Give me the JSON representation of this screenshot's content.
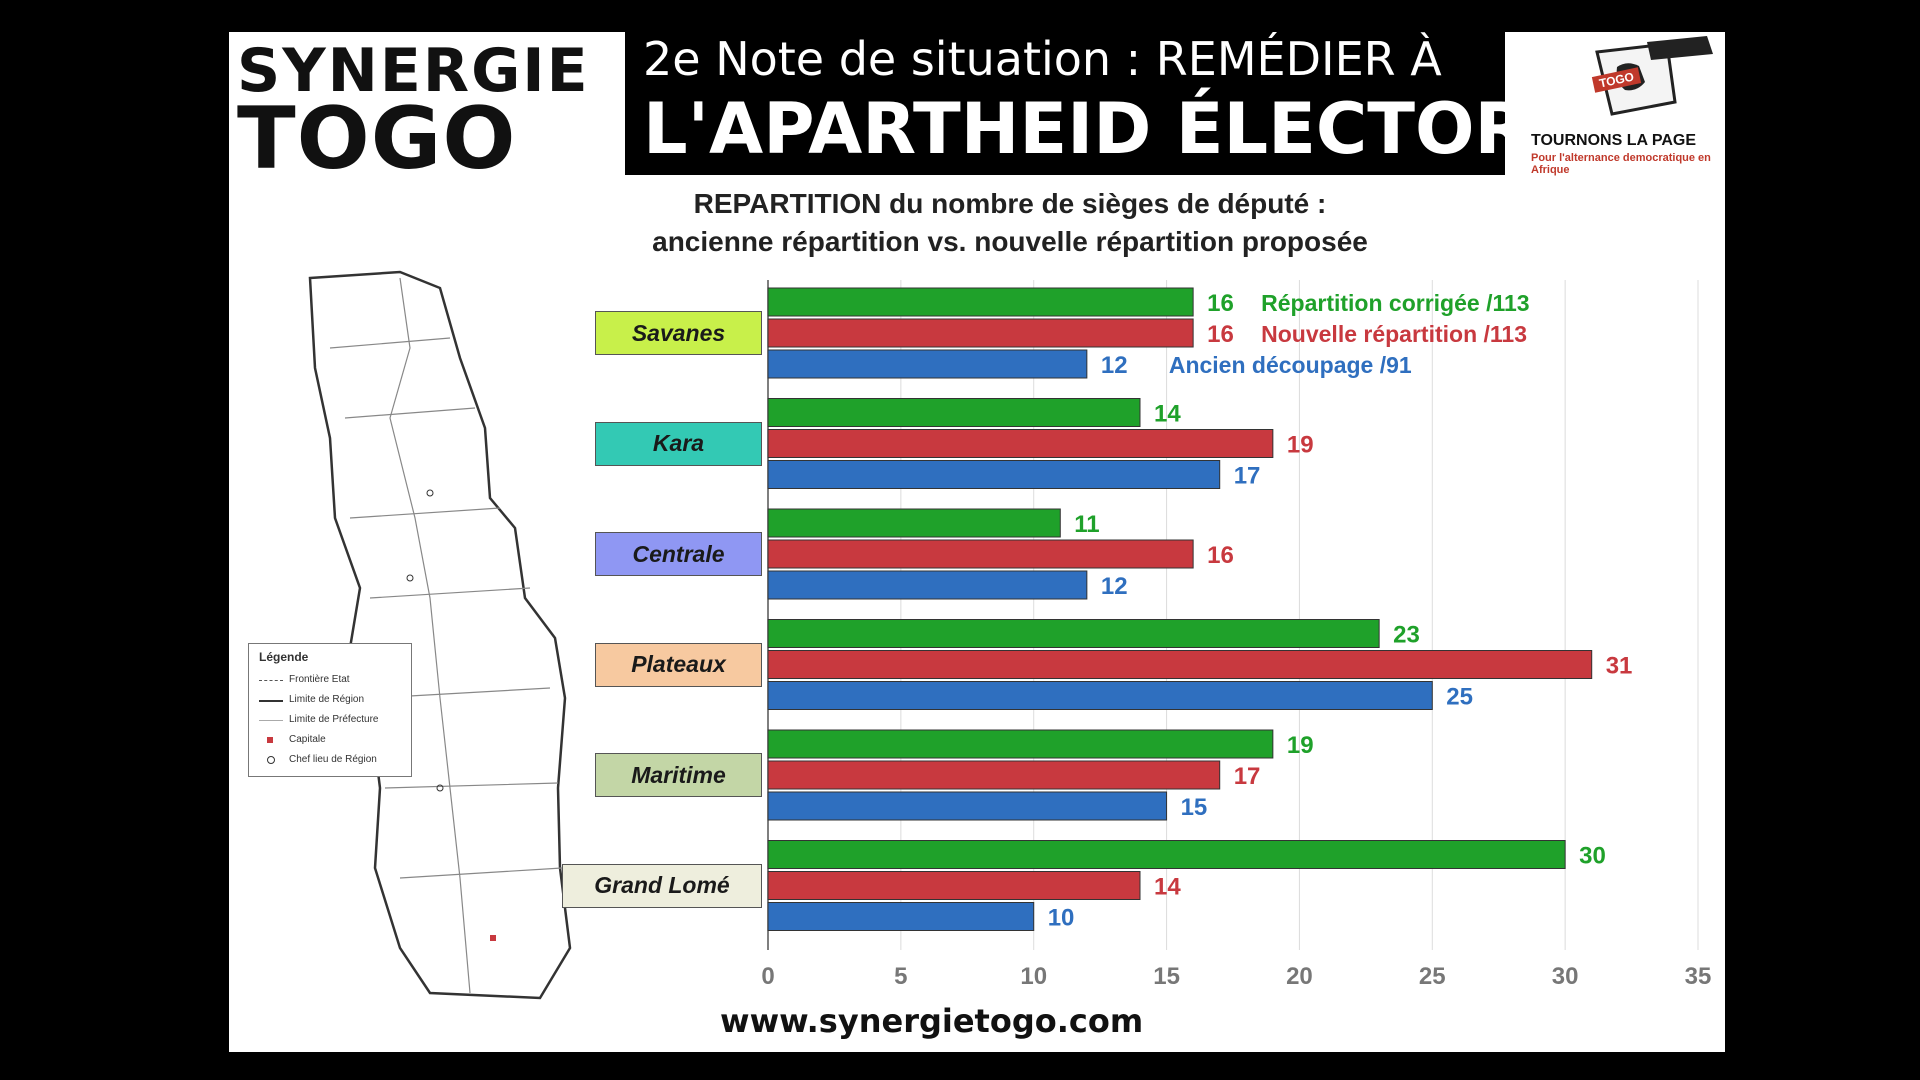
{
  "header": {
    "logo_left_line1": "SYNERGIE",
    "logo_left_line2": "TOGO",
    "title_line1": "2e Note de situation : REMÉDIER À",
    "title_line2": "L'APARTHEID ÉLECTORAL",
    "logo_right_tag": "TOGO",
    "logo_right_title": "TOURNONS LA PAGE",
    "logo_right_subtitle": "Pour l'alternance democratique en Afrique"
  },
  "map": {
    "legend_title": "Légende",
    "legend_items": [
      "Frontière Etat",
      "Limite de Région",
      "Limite de Préfecture",
      "Capitale",
      "Chef lieu de Région"
    ]
  },
  "footer": {
    "website": "www.synergietogo.com"
  },
  "colors": {
    "green": "#1fa12a",
    "red": "#c8393f",
    "blue": "#2f6fbf"
  },
  "chart_data": {
    "type": "bar",
    "orientation": "horizontal",
    "title_line1": "REPARTITION du nombre de sièges de député :",
    "title_line2": "ancienne répartition vs. nouvelle répartition proposée",
    "categories": [
      "Savanes",
      "Kara",
      "Centrale",
      "Plateaux",
      "Maritime",
      "Grand Lomé"
    ],
    "category_colors": [
      "#c8f04a",
      "#33c9b4",
      "#8f97f3",
      "#f7c9a0",
      "#c3d6a6",
      "#eeeedd"
    ],
    "series": [
      {
        "name": "Répartition corrigée /113",
        "color": "#1fa12a",
        "values": [
          16,
          14,
          11,
          23,
          19,
          30
        ]
      },
      {
        "name": "Nouvelle répartition /113",
        "color": "#c8393f",
        "values": [
          16,
          19,
          16,
          31,
          17,
          14
        ]
      },
      {
        "name": "Ancien découpage /91",
        "color": "#2f6fbf",
        "values": [
          12,
          17,
          12,
          25,
          15,
          10
        ]
      }
    ],
    "xlim": [
      0,
      35
    ],
    "xticks": [
      0,
      5,
      10,
      15,
      20,
      25,
      30,
      35
    ],
    "grid": true,
    "legend_placement": "inline-first-group"
  }
}
